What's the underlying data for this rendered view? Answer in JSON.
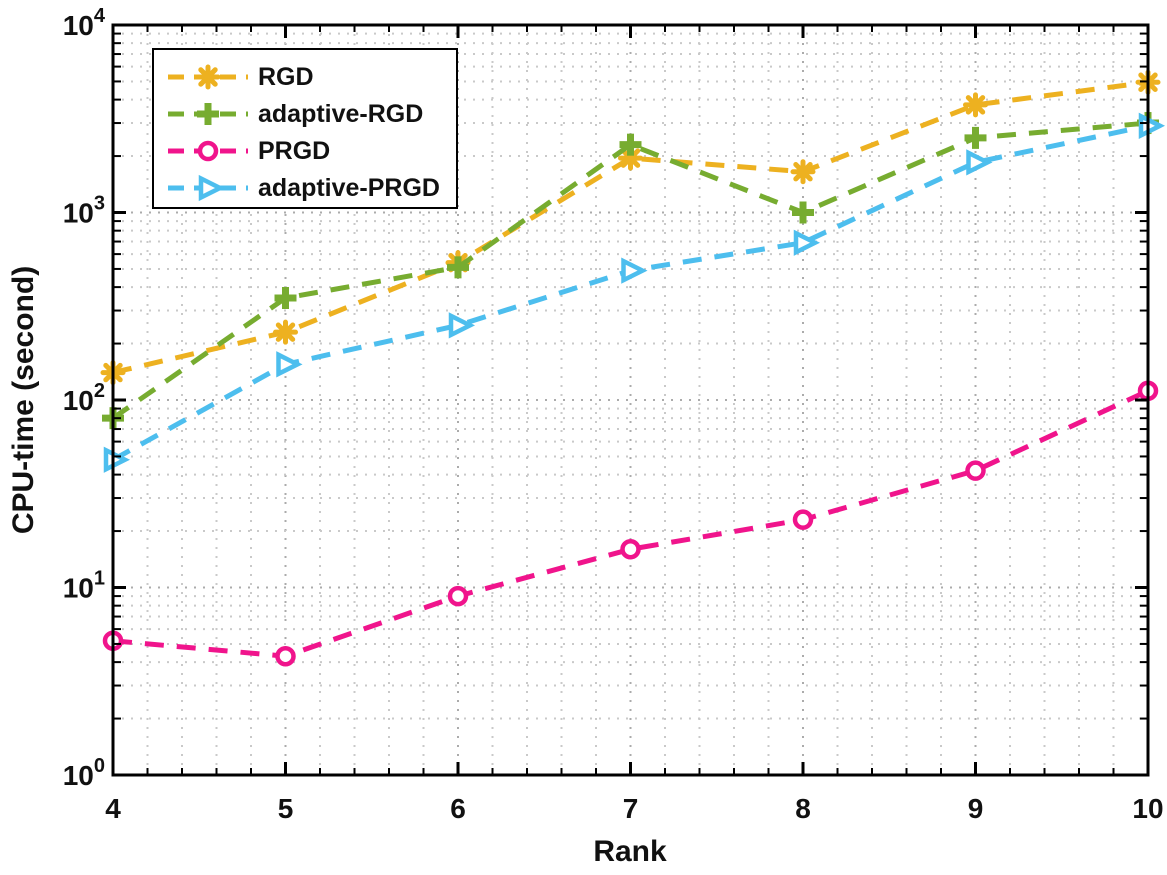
{
  "figure": {
    "background": "#ffffff",
    "axis_color": "#000000",
    "grid_major_color": "#ababab",
    "grid_minor_color": "#c9c9c9",
    "text_color": "#111111"
  },
  "chart_data": {
    "type": "line",
    "title": "",
    "xlabel": "Rank",
    "ylabel": "CPU-time (second)",
    "x_scale": "linear",
    "y_scale": "log10",
    "xlim": [
      4,
      10
    ],
    "ylim": [
      1,
      10000
    ],
    "x_ticks": [
      4,
      5,
      6,
      7,
      8,
      9,
      10
    ],
    "y_tick_exponents": [
      0,
      1,
      2,
      3,
      4
    ],
    "x_minor_step": 0.2,
    "grid": "dotted major+minor both axes",
    "legend_position": "top-left",
    "x": [
      4,
      5,
      6,
      7,
      8,
      9,
      10
    ],
    "series": [
      {
        "name": "RGD",
        "color": "#EDB120",
        "marker": "asterisk",
        "linestyle": "dashed",
        "values": [
          140,
          230,
          540,
          1950,
          1650,
          3750,
          4950
        ]
      },
      {
        "name": "adaptive-RGD",
        "color": "#77AC30",
        "marker": "plus",
        "linestyle": "dashed",
        "values": [
          80,
          350,
          510,
          2300,
          1000,
          2500,
          3000
        ]
      },
      {
        "name": "PRGD",
        "color": "#F0148C",
        "marker": "circle",
        "linestyle": "dashed",
        "values": [
          5.2,
          4.3,
          9,
          16,
          23,
          42,
          112
        ]
      },
      {
        "name": "adaptive-PRGD",
        "color": "#4DBEEE",
        "marker": "triangle-right",
        "linestyle": "dashed",
        "values": [
          48,
          155,
          250,
          490,
          690,
          1850,
          2900
        ]
      }
    ]
  }
}
